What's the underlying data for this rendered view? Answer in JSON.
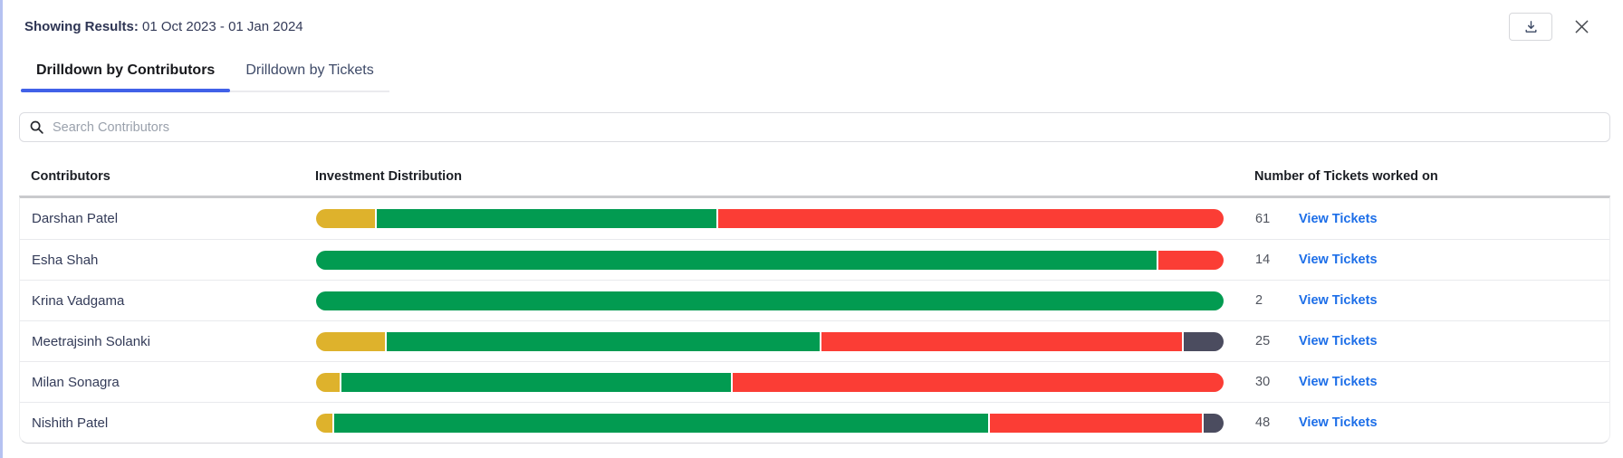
{
  "header": {
    "showing_label": "Showing Results:",
    "showing_value": "01 Oct 2023 - 01 Jan 2024",
    "icons": {
      "download": "download-tray-icon",
      "close": "close-x-icon"
    }
  },
  "tabs": [
    {
      "label": "Drilldown by Contributors",
      "active": true
    },
    {
      "label": "Drilldown by Tickets",
      "active": false
    }
  ],
  "search": {
    "placeholder": "Search Contributors",
    "icon": "search-magnifier-icon",
    "value": ""
  },
  "table": {
    "columns": [
      "Contributors",
      "Investment Distribution",
      "Number of Tickets worked on"
    ],
    "link_label": "View Tickets",
    "rows": [
      {
        "name": "Darshan Patel",
        "tickets": "61",
        "segments": [
          {
            "color_key": "yellow",
            "pct": 6.5
          },
          {
            "color_key": "green",
            "pct": 37.6
          },
          {
            "color_key": "red",
            "pct": 55.9
          }
        ]
      },
      {
        "name": "Esha Shah",
        "tickets": "14",
        "segments": [
          {
            "color_key": "green",
            "pct": 92.8
          },
          {
            "color_key": "red",
            "pct": 7.2
          }
        ]
      },
      {
        "name": "Krina Vadgama",
        "tickets": "2",
        "segments": [
          {
            "color_key": "green",
            "pct": 100
          }
        ]
      },
      {
        "name": "Meetrajsinh Solanki",
        "tickets": "25",
        "segments": [
          {
            "color_key": "yellow",
            "pct": 7.6
          },
          {
            "color_key": "green",
            "pct": 48.0
          },
          {
            "color_key": "red",
            "pct": 40.0
          },
          {
            "color_key": "slate",
            "pct": 4.4
          }
        ]
      },
      {
        "name": "Milan Sonagra",
        "tickets": "30",
        "segments": [
          {
            "color_key": "yellow",
            "pct": 2.6
          },
          {
            "color_key": "green",
            "pct": 43.1
          },
          {
            "color_key": "red",
            "pct": 54.3
          }
        ]
      },
      {
        "name": "Nishith Patel",
        "tickets": "48",
        "segments": [
          {
            "color_key": "yellow",
            "pct": 1.8
          },
          {
            "color_key": "green",
            "pct": 72.5
          },
          {
            "color_key": "red",
            "pct": 23.5
          },
          {
            "color_key": "slate",
            "pct": 2.2
          }
        ]
      }
    ]
  },
  "colors": {
    "yellow": "#DEB22C",
    "green": "#029B51",
    "red": "#FB3D35",
    "slate": "#4B4C5F",
    "link_blue": "#1C6EE8",
    "tab_underline": "#4161E8",
    "left_border": "#B5C2F1"
  }
}
